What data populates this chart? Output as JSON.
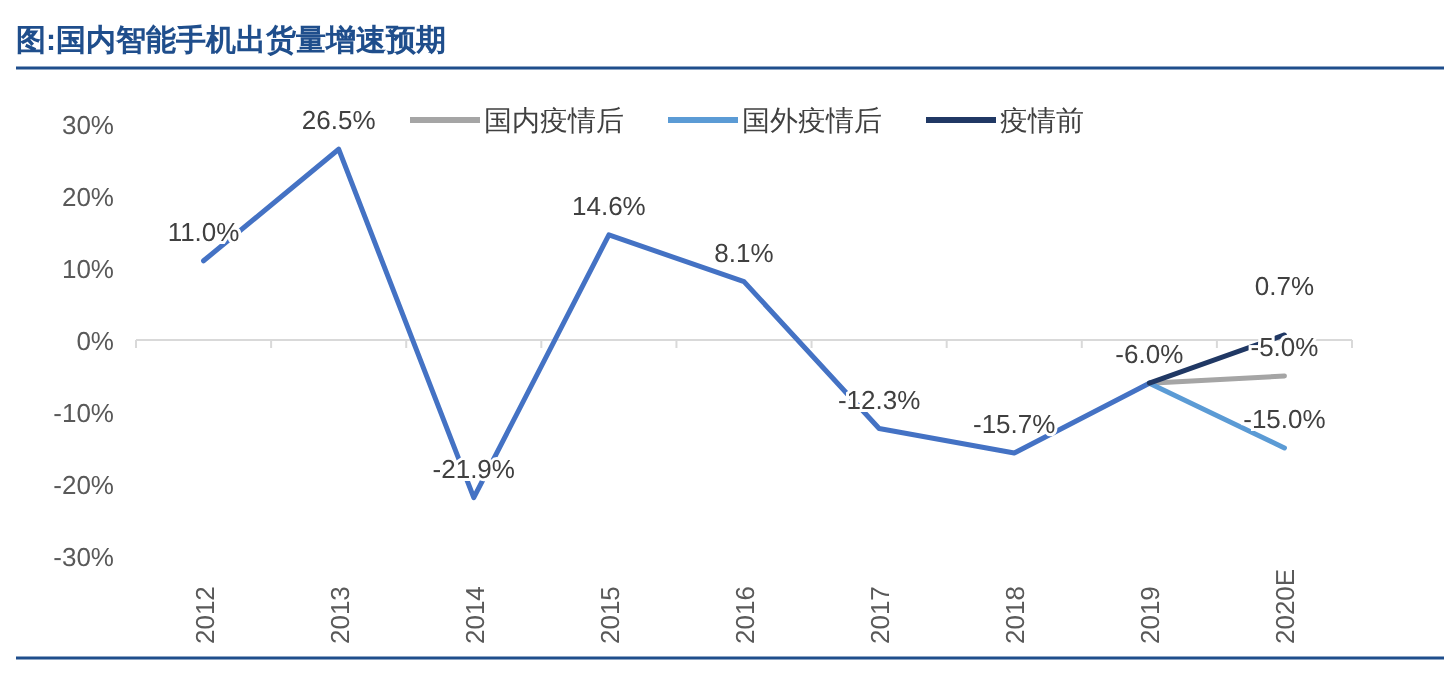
{
  "chart_data": {
    "type": "line",
    "title": "图:国内智能手机出货量增速预期",
    "categories": [
      "2012",
      "2013",
      "2014",
      "2015",
      "2016",
      "2017",
      "2018",
      "2019",
      "2020E"
    ],
    "series": [
      {
        "color": "#4472c4",
        "values": [
          11.0,
          26.5,
          -21.9,
          14.6,
          8.1,
          -12.3,
          -15.7,
          -6.0,
          null
        ],
        "value_labels": [
          "11.0%",
          "26.5%",
          "-21.9%",
          "14.6%",
          "8.1%",
          "-12.3%",
          "-15.7%",
          "-6.0%",
          null
        ]
      },
      {
        "name": "国内疫情后",
        "color": "#a5a5a5",
        "values": [
          null,
          null,
          null,
          null,
          null,
          null,
          null,
          -6.0,
          -5.0
        ],
        "value_labels": [
          null,
          null,
          null,
          null,
          null,
          null,
          null,
          null,
          "-5.0%"
        ]
      },
      {
        "name": "国外疫情后",
        "color": "#5b9bd5",
        "values": [
          null,
          null,
          null,
          null,
          null,
          null,
          null,
          -6.0,
          -15.0
        ],
        "value_labels": [
          null,
          null,
          null,
          null,
          null,
          null,
          null,
          null,
          "-15.0%"
        ]
      },
      {
        "name": "疫情前",
        "color": "#203864",
        "values": [
          null,
          null,
          null,
          null,
          null,
          null,
          null,
          -6.0,
          0.7
        ],
        "value_labels": [
          null,
          null,
          null,
          null,
          null,
          null,
          null,
          null,
          "0.7%"
        ]
      }
    ],
    "ylim": [
      -30,
      30
    ],
    "yticks": [
      {
        "value": -30,
        "label": "-30%"
      },
      {
        "value": -20,
        "label": "-20%"
      },
      {
        "value": -10,
        "label": "-10%"
      },
      {
        "value": 0,
        "label": "0%"
      },
      {
        "value": 10,
        "label": "10%"
      },
      {
        "value": 20,
        "label": "20%"
      },
      {
        "value": 30,
        "label": "30%"
      }
    ],
    "legend": "top",
    "marker": "none",
    "line_style": "solid"
  }
}
